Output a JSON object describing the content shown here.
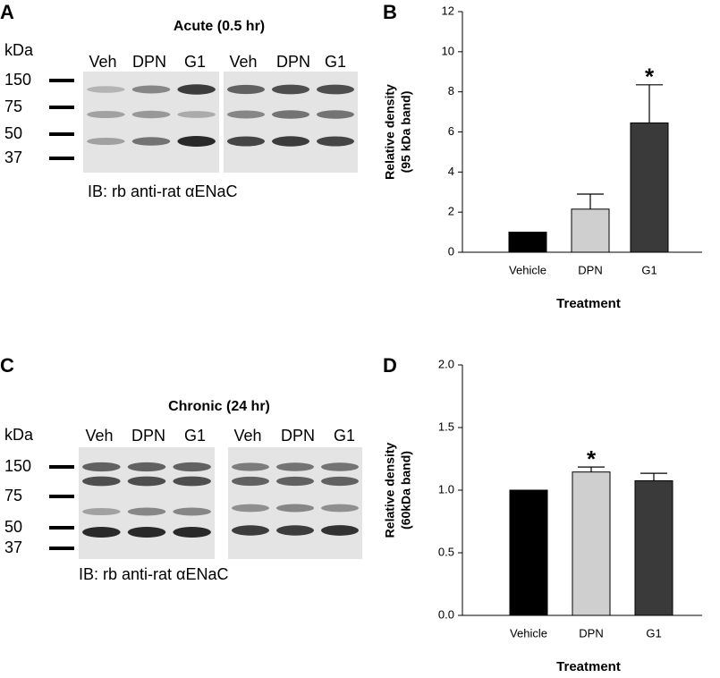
{
  "blots": [
    {
      "letter": "A",
      "title": "Acute (0.5 hr)",
      "unit": "kDa",
      "markers": [
        150,
        75,
        50,
        37
      ],
      "lanes": [
        "Veh",
        "DPN",
        "G1",
        "Veh",
        "DPN",
        "G1"
      ],
      "caption": "IB: rb anti-rat αENaC"
    },
    {
      "letter": "C",
      "title": "Chronic (24 hr)",
      "unit": "kDa",
      "markers": [
        150,
        75,
        50,
        37
      ],
      "lanes": [
        "Veh",
        "DPN",
        "G1",
        "Veh",
        "DPN",
        "G1"
      ],
      "caption": "IB: rb anti-rat αENaC"
    }
  ],
  "chart_data": [
    {
      "type": "bar",
      "letter": "B",
      "ylabel": [
        "Relative density",
        "(95 kDa band)"
      ],
      "xlabel": "Treatment",
      "categories": [
        "Vehicle",
        "DPN",
        "G1"
      ],
      "values": [
        1,
        2.15,
        6.45
      ],
      "errors": [
        null,
        0.75,
        1.9
      ],
      "colors": [
        "#000000",
        "#cfcfcf",
        "#3a3a3a"
      ],
      "markers": [
        null,
        null,
        "*"
      ],
      "ylim": [
        0,
        12
      ],
      "yticks": [
        0,
        2,
        4,
        6,
        8,
        10,
        12
      ]
    },
    {
      "type": "bar",
      "letter": "D",
      "ylabel": [
        "Relative density",
        "(60kDa band)"
      ],
      "xlabel": "Treatment",
      "categories": [
        "Vehicle",
        "DPN",
        "G1"
      ],
      "values": [
        1.0,
        1.145,
        1.075
      ],
      "errors": [
        null,
        0.04,
        0.06
      ],
      "colors": [
        "#000000",
        "#cfcfcf",
        "#3a3a3a"
      ],
      "markers": [
        null,
        "*",
        null
      ],
      "ylim": [
        0,
        2
      ],
      "yticks": [
        {
          "value": 0,
          "label": "0.0"
        },
        {
          "value": 0.5,
          "label": "0.5"
        },
        {
          "value": 1,
          "label": "1.0"
        },
        {
          "value": 1.5,
          "label": "1.5"
        },
        {
          "value": 2,
          "label": "2.0"
        }
      ]
    }
  ]
}
